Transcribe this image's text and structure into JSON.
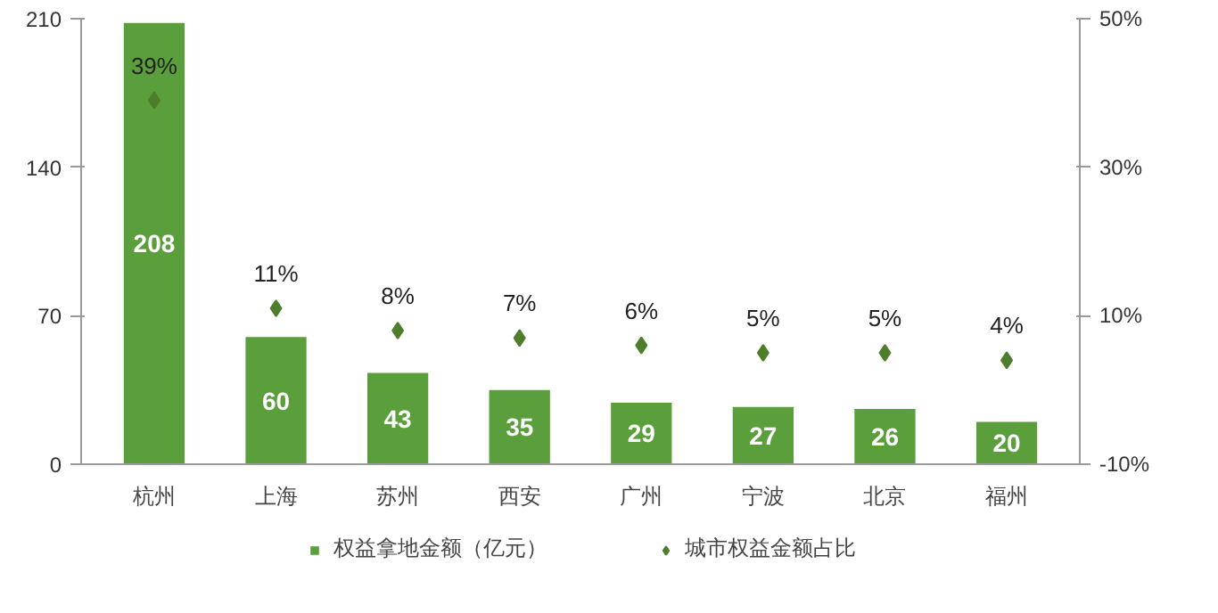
{
  "chart_data": {
    "type": "bar",
    "categories": [
      "杭州",
      "上海",
      "苏州",
      "西安",
      "广州",
      "宁波",
      "北京",
      "福州"
    ],
    "series": [
      {
        "name": "权益拿地金额（亿元）",
        "type": "bar",
        "color": "#5b9f3c",
        "values": [
          208,
          60,
          43,
          35,
          29,
          27,
          26,
          20
        ]
      },
      {
        "name": "城市权益金额占比",
        "type": "scatter",
        "axis": "y2",
        "color": "#4e7d2c",
        "marker": "diamond",
        "values": [
          39,
          11,
          8,
          7,
          6,
          5,
          5,
          4
        ],
        "value_labels": [
          "39%",
          "11%",
          "8%",
          "7%",
          "6%",
          "5%",
          "5%",
          "4%"
        ]
      }
    ],
    "ylim": [
      0,
      210
    ],
    "yticks": [
      0,
      70,
      140,
      210
    ],
    "y2lim": [
      -10,
      50
    ],
    "y2ticks": [
      {
        "value": -10,
        "label": "-10%"
      },
      {
        "value": 10,
        "label": "10%"
      },
      {
        "value": 30,
        "label": "30%"
      },
      {
        "value": 50,
        "label": "50%"
      }
    ],
    "data_labels": true,
    "grid": false,
    "legend": "bottom"
  }
}
